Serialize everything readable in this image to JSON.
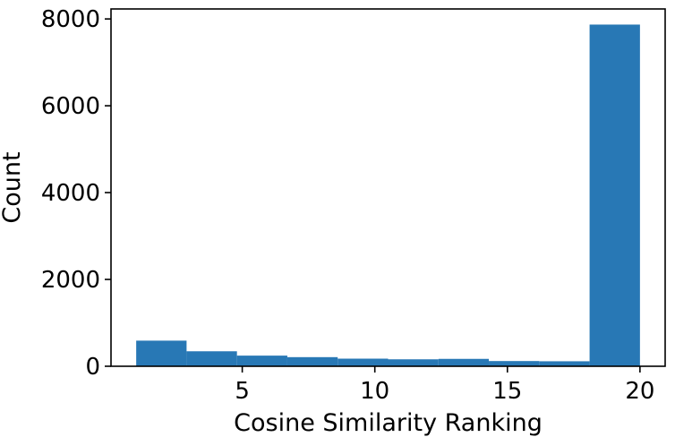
{
  "chart_data": {
    "type": "bar",
    "xlabel": "Cosine Similarity Ranking",
    "ylabel": "Count",
    "xlim": [
      0.05,
      20.95
    ],
    "ylim": [
      0,
      8230
    ],
    "x_ticks": [
      5,
      10,
      15,
      20
    ],
    "y_ticks": [
      0,
      2000,
      4000,
      6000,
      8000
    ],
    "grid": false,
    "color": "#2878b5",
    "bins": [
      {
        "x0": 1.0,
        "x1": 2.9,
        "value": 590
      },
      {
        "x0": 2.9,
        "x1": 4.8,
        "value": 345
      },
      {
        "x0": 4.8,
        "x1": 6.7,
        "value": 245
      },
      {
        "x0": 6.7,
        "x1": 8.6,
        "value": 210
      },
      {
        "x0": 8.6,
        "x1": 10.5,
        "value": 175
      },
      {
        "x0": 10.5,
        "x1": 12.4,
        "value": 160
      },
      {
        "x0": 12.4,
        "x1": 14.3,
        "value": 170
      },
      {
        "x0": 14.3,
        "x1": 16.2,
        "value": 120
      },
      {
        "x0": 16.2,
        "x1": 18.1,
        "value": 115
      },
      {
        "x0": 18.1,
        "x1": 20.0,
        "value": 7870
      }
    ]
  }
}
